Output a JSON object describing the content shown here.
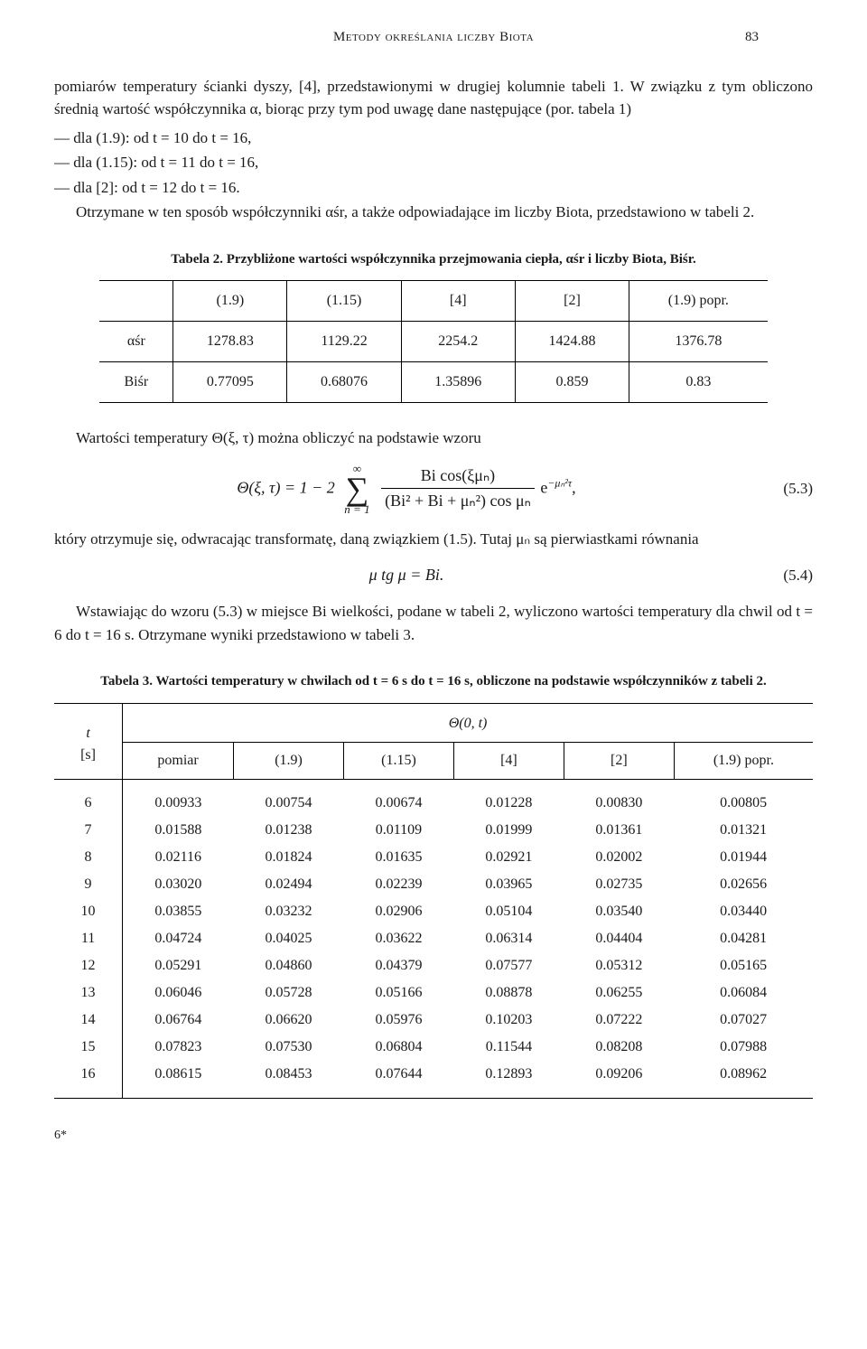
{
  "header": {
    "running_title": "Metody określania liczby Biota",
    "page_number": "83"
  },
  "para1": "pomiarów temperatury ścianki dyszy, [4], przedstawionymi w drugiej kolumnie tabeli 1. W związku z tym obliczono średnią wartość współczynnika α, biorąc przy tym pod uwagę dane następujące (por. tabela 1)",
  "dash1": "— dla (1.9): od t = 10 do t = 16,",
  "dash2": "— dla (1.15): od t = 11 do t = 16,",
  "dash3": "— dla [2]: od t = 12 do t = 16.",
  "para2": "Otrzymane w ten sposób współczynniki αśr, a także odpowiadające im liczby Biota, przedstawiono w tabeli 2.",
  "table2": {
    "caption": "Tabela 2. Przybliżone wartości współczynnika przejmowania ciepła, αśr i liczby Biota, Biśr.",
    "columns": [
      "(1.9)",
      "(1.15)",
      "[4]",
      "[2]",
      "(1.9) popr."
    ],
    "rows": [
      {
        "label": "αśr",
        "vals": [
          "1278.83",
          "1129.22",
          "2254.2",
          "1424.88",
          "1376.78"
        ]
      },
      {
        "label": "Biśr",
        "vals": [
          "0.77095",
          "0.68076",
          "1.35896",
          "0.859",
          "0.83"
        ]
      }
    ],
    "border_color": "#000000",
    "background_color": "#ffffff"
  },
  "para3": "Wartości temperatury Θ(ξ, τ) można obliczyć na podstawie wzoru",
  "eq53": {
    "lhs": "Θ(ξ, τ) = 1 − 2",
    "sum_top": "∞",
    "sum_bot": "n = 1",
    "frac_num": "Bi cos(ξμₙ)",
    "frac_den": "(Bi² + Bi + μₙ²) cos μₙ",
    "tail": " e",
    "exp": "−μₙ²τ",
    "comma": ",",
    "number": "(5.3)"
  },
  "para4": "który otrzymuje się, odwracając transformatę, daną związkiem (1.5). Tutaj μₙ są pierwiastkami równania",
  "eq54": {
    "body": "μ tg μ = Bi.",
    "number": "(5.4)"
  },
  "para5": "Wstawiając do wzoru (5.3) w miejsce Bi wielkości, podane w tabeli 2, wyliczono wartości temperatury dla chwil od t = 6 do t = 16 s. Otrzymane wyniki przedstawiono w tabeli 3.",
  "table3": {
    "caption": "Tabela 3. Wartości temperatury w chwilach od t = 6 s do t = 16 s, obliczone na podstawie współczynników z tabeli 2.",
    "t_header": "t",
    "t_unit": "[s]",
    "theta_header": "Θ(0, t)",
    "subcols": [
      "pomiar",
      "(1.9)",
      "(1.15)",
      "[4]",
      "[2]",
      "(1.9) popr."
    ],
    "rows": [
      [
        "6",
        "0.00933",
        "0.00754",
        "0.00674",
        "0.01228",
        "0.00830",
        "0.00805"
      ],
      [
        "7",
        "0.01588",
        "0.01238",
        "0.01109",
        "0.01999",
        "0.01361",
        "0.01321"
      ],
      [
        "8",
        "0.02116",
        "0.01824",
        "0.01635",
        "0.02921",
        "0.02002",
        "0.01944"
      ],
      [
        "9",
        "0.03020",
        "0.02494",
        "0.02239",
        "0.03965",
        "0.02735",
        "0.02656"
      ],
      [
        "10",
        "0.03855",
        "0.03232",
        "0.02906",
        "0.05104",
        "0.03540",
        "0.03440"
      ],
      [
        "11",
        "0.04724",
        "0.04025",
        "0.03622",
        "0.06314",
        "0.04404",
        "0.04281"
      ],
      [
        "12",
        "0.05291",
        "0.04860",
        "0.04379",
        "0.07577",
        "0.05312",
        "0.05165"
      ],
      [
        "13",
        "0.06046",
        "0.05728",
        "0.05166",
        "0.08878",
        "0.06255",
        "0.06084"
      ],
      [
        "14",
        "0.06764",
        "0.06620",
        "0.05976",
        "0.10203",
        "0.07222",
        "0.07027"
      ],
      [
        "15",
        "0.07823",
        "0.07530",
        "0.06804",
        "0.11544",
        "0.08208",
        "0.07988"
      ],
      [
        "16",
        "0.08615",
        "0.08453",
        "0.07644",
        "0.12893",
        "0.09206",
        "0.08962"
      ]
    ],
    "border_color": "#000000",
    "background_color": "#ffffff",
    "col_widths_pct": [
      9,
      15,
      15,
      15,
      15,
      15,
      16
    ]
  },
  "footer": "6*",
  "typography": {
    "font_family": "Times New Roman",
    "body_fontsize_pt": 12,
    "caption_fontsize_pt": 11,
    "text_color": "#1a1a1a",
    "background_color": "#ffffff"
  }
}
